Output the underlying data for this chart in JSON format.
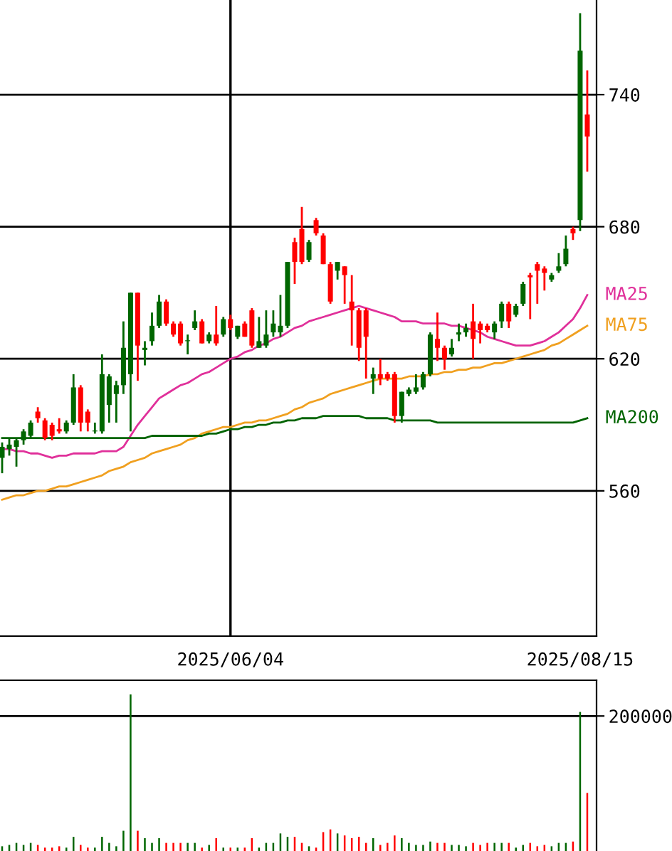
{
  "chart_data": [
    {
      "type": "candlestick",
      "categories": [
        null,
        null,
        null,
        null,
        null,
        null,
        null,
        null,
        null,
        null,
        null,
        null,
        null,
        null,
        null,
        null,
        null,
        null,
        null,
        null,
        null,
        null,
        null,
        null,
        null,
        null,
        null,
        null,
        null,
        null,
        null,
        null,
        "2025/06/04",
        null,
        null,
        null,
        null,
        null,
        null,
        null,
        null,
        null,
        null,
        null,
        null,
        null,
        null,
        null,
        null,
        null,
        null,
        null,
        null,
        null,
        null,
        null,
        null,
        null,
        null,
        null,
        null,
        null,
        null,
        null,
        null,
        null,
        null,
        null,
        null,
        null,
        null,
        null,
        null,
        null,
        null,
        null,
        null,
        null,
        null,
        null,
        null,
        "2025/08/15",
        null
      ],
      "ohlc": [
        [
          575,
          582,
          568,
          580
        ],
        [
          579,
          584,
          576,
          581
        ],
        [
          580,
          584,
          571,
          583
        ],
        [
          583,
          588,
          581,
          587
        ],
        [
          585,
          592,
          584,
          591
        ],
        [
          596,
          598,
          591,
          593
        ],
        [
          592,
          593,
          583,
          584
        ],
        [
          590,
          591,
          583,
          585
        ],
        [
          588,
          593,
          586,
          587
        ],
        [
          587,
          592,
          586,
          591
        ],
        [
          591,
          613,
          590,
          607
        ],
        [
          607,
          608,
          587,
          591
        ],
        [
          596,
          597,
          587,
          591
        ],
        [
          587,
          591,
          586,
          587
        ],
        [
          587,
          622,
          586,
          613
        ],
        [
          599,
          613,
          591,
          612
        ],
        [
          604,
          610,
          591,
          608
        ],
        [
          608,
          637,
          604,
          625
        ],
        [
          613,
          650,
          587,
          650
        ],
        [
          650,
          650,
          610,
          626
        ],
        [
          624,
          628,
          617,
          625
        ],
        [
          628,
          641,
          626,
          635
        ],
        [
          635,
          649,
          634,
          646
        ],
        [
          646,
          647,
          635,
          636
        ],
        [
          636,
          637,
          630,
          631
        ],
        [
          636,
          637,
          626,
          627
        ],
        [
          628,
          631,
          622,
          628
        ],
        [
          634,
          642,
          633,
          637
        ],
        [
          637,
          638,
          627,
          627
        ],
        [
          628,
          632,
          627,
          631
        ],
        [
          631,
          644,
          626,
          627
        ],
        [
          631,
          639,
          630,
          638
        ],
        [
          638,
          640,
          633,
          634
        ],
        [
          630,
          635,
          629,
          635
        ],
        [
          636,
          637,
          630,
          630
        ],
        [
          642,
          643,
          625,
          626
        ],
        [
          625,
          639,
          625,
          628
        ],
        [
          626,
          642,
          625,
          631
        ],
        [
          632,
          642,
          630,
          636
        ],
        [
          632,
          649,
          630,
          635
        ],
        [
          635,
          664,
          634,
          664
        ],
        [
          673,
          675,
          654,
          664
        ],
        [
          679,
          689,
          663,
          664
        ],
        [
          665,
          674,
          664,
          673
        ],
        [
          683,
          684,
          676,
          677
        ],
        [
          676,
          677,
          663,
          663
        ],
        [
          663,
          664,
          645,
          646
        ],
        [
          660,
          664,
          656,
          664
        ],
        [
          662,
          662,
          645,
          658
        ],
        [
          646,
          658,
          626,
          642
        ],
        [
          642,
          643,
          619,
          625
        ],
        [
          642,
          643,
          611,
          630
        ],
        [
          611,
          616,
          604,
          613
        ],
        [
          613,
          620,
          608,
          611
        ],
        [
          613,
          614,
          610,
          611
        ],
        [
          613,
          614,
          591,
          594
        ],
        [
          594,
          605,
          591,
          605
        ],
        [
          604,
          607,
          603,
          606
        ],
        [
          605,
          613,
          604,
          607
        ],
        [
          607,
          614,
          606,
          613
        ],
        [
          613,
          632,
          612,
          631
        ],
        [
          629,
          641,
          619,
          625
        ],
        [
          625,
          626,
          615,
          620
        ],
        [
          622,
          629,
          621,
          625
        ],
        [
          631,
          636,
          628,
          632
        ],
        [
          632,
          636,
          630,
          634
        ],
        [
          637,
          645,
          620,
          629
        ],
        [
          636,
          637,
          627,
          633
        ],
        [
          635,
          636,
          632,
          633
        ],
        [
          632,
          637,
          629,
          636
        ],
        [
          637,
          646,
          634,
          645
        ],
        [
          645,
          646,
          634,
          637
        ],
        [
          640,
          645,
          639,
          644
        ],
        [
          645,
          655,
          644,
          654
        ],
        [
          658,
          659,
          638,
          657
        ],
        [
          663,
          664,
          645,
          660
        ],
        [
          661,
          662,
          651,
          659
        ],
        [
          656,
          659,
          655,
          658
        ],
        [
          660,
          668,
          659,
          662
        ],
        [
          663,
          676,
          662,
          670
        ],
        [
          679,
          680,
          674,
          677
        ],
        [
          683,
          777,
          678,
          760
        ],
        [
          731,
          751,
          705,
          721
        ]
      ],
      "colors": [
        "#006600",
        "#006600",
        "#006600",
        "#006600",
        "#006600",
        "#ff0000",
        "#ff0000",
        "#ff0000",
        "#ff0000",
        "#006600",
        "#006600",
        "#ff0000",
        "#ff0000",
        "#006600",
        "#006600",
        "#006600",
        "#006600",
        "#006600",
        "#006600",
        "#ff0000",
        "#006600",
        "#006600",
        "#006600",
        "#ff0000",
        "#ff0000",
        "#ff0000",
        "#006600",
        "#006600",
        "#ff0000",
        "#006600",
        "#ff0000",
        "#006600",
        "#ff0000",
        "#006600",
        "#ff0000",
        "#ff0000",
        "#006600",
        "#006600",
        "#006600",
        "#006600",
        "#006600",
        "#ff0000",
        "#ff0000",
        "#006600",
        "#ff0000",
        "#ff0000",
        "#ff0000",
        "#006600",
        "#ff0000",
        "#ff0000",
        "#ff0000",
        "#ff0000",
        "#006600",
        "#ff0000",
        "#ff0000",
        "#ff0000",
        "#006600",
        "#006600",
        "#006600",
        "#006600",
        "#006600",
        "#ff0000",
        "#ff0000",
        "#006600",
        "#006600",
        "#006600",
        "#ff0000",
        "#ff0000",
        "#ff0000",
        "#006600",
        "#006600",
        "#ff0000",
        "#006600",
        "#006600",
        "#ff0000",
        "#ff0000",
        "#ff0000",
        "#006600",
        "#006600",
        "#006600",
        "#ff0000",
        "#006600",
        "#ff0000"
      ],
      "series": [
        {
          "type": "line",
          "name": "MA25",
          "color": "#e0309a",
          "values": [
            579,
            579,
            578,
            578,
            577,
            577,
            576,
            575,
            576,
            576,
            577,
            577,
            577,
            577,
            578,
            578,
            578,
            580,
            585,
            590,
            594,
            598,
            602,
            604,
            606,
            608,
            609,
            611,
            613,
            614,
            616,
            618,
            620,
            621,
            623,
            624,
            626,
            627,
            629,
            630,
            632,
            634,
            635,
            637,
            638,
            639,
            640,
            641,
            642,
            643,
            644,
            643,
            642,
            641,
            640,
            639,
            637,
            637,
            637,
            636,
            636,
            636,
            636,
            635,
            635,
            634,
            633,
            632,
            630,
            629,
            628,
            627,
            626,
            626,
            626,
            627,
            628,
            630,
            632,
            635,
            638,
            643,
            649
          ]
        },
        {
          "type": "line",
          "name": "MA75",
          "color": "#f0a020",
          "values": [
            556,
            557,
            558,
            558,
            559,
            560,
            560,
            561,
            562,
            562,
            563,
            564,
            565,
            566,
            567,
            569,
            570,
            571,
            573,
            574,
            575,
            577,
            578,
            579,
            580,
            581,
            583,
            584,
            586,
            587,
            588,
            589,
            589,
            590,
            591,
            591,
            592,
            592,
            593,
            594,
            595,
            597,
            598,
            600,
            601,
            602,
            604,
            605,
            606,
            607,
            608,
            609,
            610,
            611,
            611,
            611,
            611,
            612,
            612,
            612,
            613,
            613,
            614,
            614,
            615,
            615,
            616,
            616,
            617,
            618,
            618,
            619,
            620,
            621,
            622,
            623,
            624,
            626,
            627,
            629,
            631,
            633,
            635
          ]
        },
        {
          "type": "line",
          "name": "MA200",
          "color": "#006400",
          "values": [
            584,
            584,
            584,
            584,
            584,
            584,
            584,
            584,
            584,
            584,
            584,
            584,
            584,
            584,
            584,
            584,
            584,
            584,
            584,
            584,
            584,
            585,
            585,
            585,
            585,
            585,
            585,
            585,
            585,
            586,
            586,
            587,
            588,
            588,
            589,
            589,
            590,
            590,
            591,
            591,
            592,
            592,
            593,
            593,
            593,
            594,
            594,
            594,
            594,
            594,
            594,
            593,
            593,
            593,
            593,
            592,
            592,
            592,
            592,
            592,
            592,
            591,
            591,
            591,
            591,
            591,
            591,
            591,
            591,
            591,
            591,
            591,
            591,
            591,
            591,
            591,
            591,
            591,
            591,
            591,
            591,
            592,
            593
          ]
        }
      ],
      "ylim": [
        494,
        783
      ],
      "yticks": [
        560,
        620,
        680,
        740
      ],
      "grid": "y",
      "legend": false,
      "ref_lines": [
        {
          "axis": "x",
          "value": "2025/06/04"
        }
      ]
    },
    {
      "type": "bar",
      "ylim": [
        0,
        253000
      ],
      "yticks": [
        200000
      ],
      "grid": "y",
      "categories": [
        null,
        null,
        null,
        null,
        null,
        null,
        null,
        null,
        null,
        null,
        null,
        null,
        null,
        null,
        null,
        null,
        null,
        null,
        null,
        null,
        null,
        null,
        null,
        null,
        null,
        null,
        null,
        null,
        null,
        null,
        null,
        null,
        null,
        null,
        null,
        null,
        null,
        null,
        null,
        null,
        null,
        null,
        null,
        null,
        null,
        null,
        null,
        null,
        null,
        null,
        null,
        null,
        null,
        null,
        null,
        null,
        null,
        null,
        null,
        null,
        null,
        null,
        null,
        null,
        null,
        null,
        null,
        null,
        null,
        null,
        null,
        null,
        null,
        null,
        null,
        null,
        null,
        null,
        null,
        null,
        null,
        null,
        null
      ],
      "series": [
        {
          "values": [
            7000,
            9000,
            12000,
            9000,
            12000,
            9000,
            5000,
            5000,
            7000,
            5000,
            21000,
            9000,
            5000,
            5000,
            21000,
            12000,
            7000,
            30000,
            232000,
            30000,
            19000,
            12000,
            19000,
            12000,
            12000,
            12000,
            12000,
            12000,
            5000,
            9000,
            19000,
            5000,
            5000,
            5000,
            5000,
            19000,
            5000,
            12000,
            12000,
            26000,
            21000,
            21000,
            12000,
            7000,
            5000,
            28000,
            32000,
            26000,
            23000,
            19000,
            21000,
            12000,
            19000,
            9000,
            12000,
            23000,
            19000,
            12000,
            9000,
            9000,
            14000,
            12000,
            12000,
            9000,
            9000,
            7000,
            12000,
            9000,
            12000,
            12000,
            12000,
            12000,
            5000,
            9000,
            12000,
            7000,
            9000,
            7000,
            12000,
            12000,
            14000,
            206000,
            86000
          ],
          "colors": [
            "#006600",
            "#006600",
            "#006600",
            "#006600",
            "#006600",
            "#ff0000",
            "#ff0000",
            "#ff0000",
            "#ff0000",
            "#006600",
            "#006600",
            "#ff0000",
            "#ff0000",
            "#006600",
            "#006600",
            "#006600",
            "#006600",
            "#006600",
            "#006600",
            "#ff0000",
            "#006600",
            "#006600",
            "#006600",
            "#ff0000",
            "#ff0000",
            "#ff0000",
            "#006600",
            "#006600",
            "#ff0000",
            "#006600",
            "#ff0000",
            "#006600",
            "#ff0000",
            "#006600",
            "#ff0000",
            "#ff0000",
            "#006600",
            "#006600",
            "#006600",
            "#006600",
            "#006600",
            "#ff0000",
            "#ff0000",
            "#006600",
            "#ff0000",
            "#ff0000",
            "#ff0000",
            "#006600",
            "#ff0000",
            "#ff0000",
            "#ff0000",
            "#ff0000",
            "#006600",
            "#ff0000",
            "#ff0000",
            "#ff0000",
            "#006600",
            "#006600",
            "#006600",
            "#006600",
            "#006600",
            "#ff0000",
            "#ff0000",
            "#006600",
            "#006600",
            "#006600",
            "#ff0000",
            "#ff0000",
            "#ff0000",
            "#006600",
            "#006600",
            "#ff0000",
            "#006600",
            "#006600",
            "#ff0000",
            "#ff0000",
            "#ff0000",
            "#006600",
            "#006600",
            "#006600",
            "#ff0000",
            "#006600",
            "#ff0000"
          ]
        }
      ],
      "legend": false
    }
  ]
}
